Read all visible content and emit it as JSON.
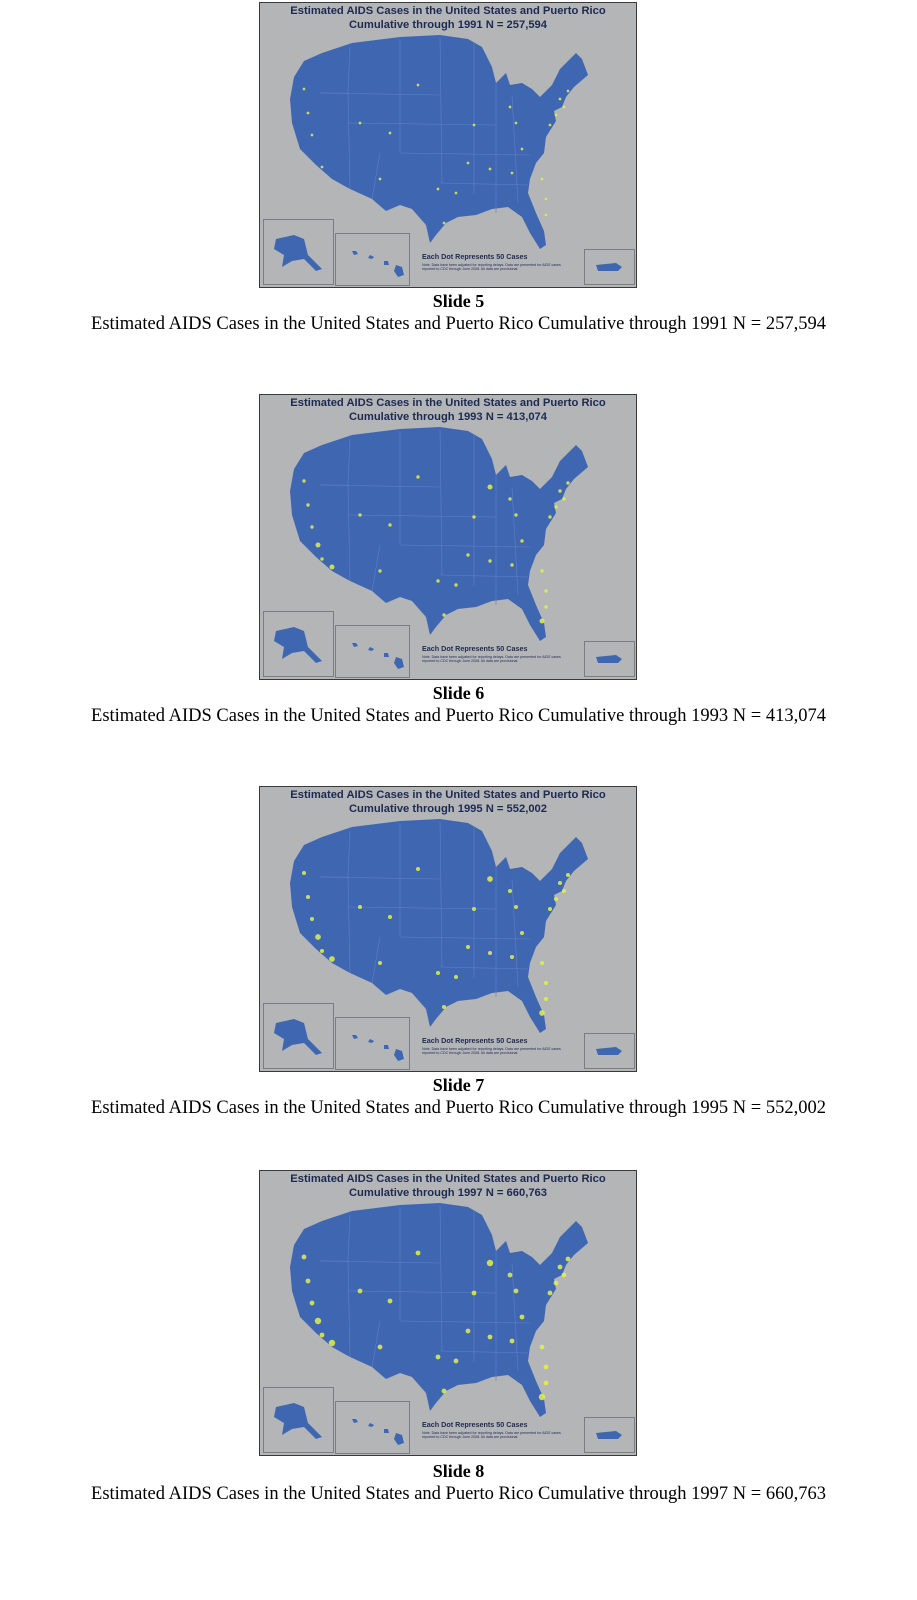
{
  "map_legend": {
    "title": "Each Dot Represents 50 Cases",
    "note": "Note. Data have been adjusted for reporting delays. Data are presented for AIDS cases reported to CDC through June 2008. All data are provisional."
  },
  "colors": {
    "slide_background": "#b4b5b7",
    "map_fill": "#3f67b1",
    "dot": "#e3f04a",
    "title_text": "#1d2a52"
  },
  "slides": [
    {
      "label": "Slide 5",
      "map_title_line1": "Estimated AIDS Cases in the United States and Puerto Rico",
      "map_title_line2": "Cumulative through 1991   N =  257,594",
      "caption": "Estimated AIDS Cases in the United States and Puerto Rico Cumulative through 1991 N = 257,594",
      "dot_intensity": 1
    },
    {
      "label": "Slide 6",
      "map_title_line1": "Estimated AIDS Cases in the United States and Puerto Rico",
      "map_title_line2": "Cumulative through 1993   N =  413,074",
      "caption": "Estimated AIDS Cases in the United States and Puerto Rico Cumulative through 1993 N = 413,074",
      "dot_intensity": 2
    },
    {
      "label": "Slide 7",
      "map_title_line1": "Estimated AIDS Cases in the United States and Puerto Rico",
      "map_title_line2": "Cumulative through 1995   N =  552,002",
      "caption": "Estimated AIDS Cases in the United States and Puerto Rico Cumulative through 1995 N = 552,002",
      "dot_intensity": 3
    },
    {
      "label": "Slide 8",
      "map_title_line1": "Estimated AIDS Cases in the United States and Puerto Rico",
      "map_title_line2": "Cumulative through 1997   N =  660,763",
      "caption": "Estimated AIDS Cases in the United States and Puerto Rico Cumulative through 1997 N = 660,763",
      "dot_intensity": 4
    }
  ]
}
